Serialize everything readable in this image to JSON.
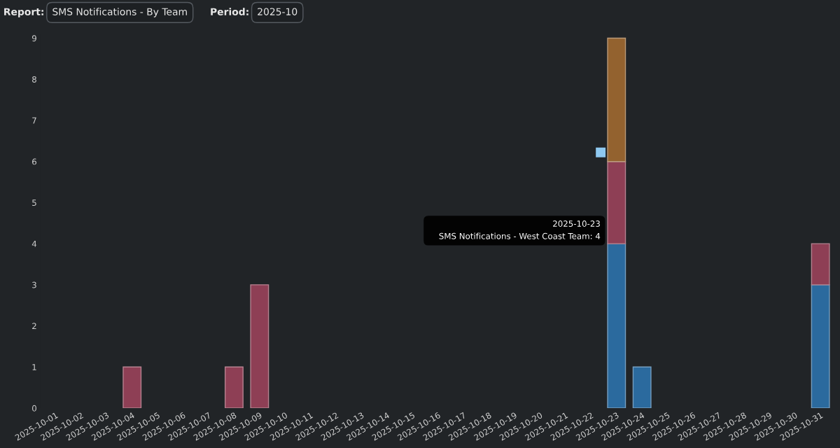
{
  "chart_data": {
    "type": "bar",
    "stacked": true,
    "categories": [
      "2025-10-01",
      "2025-10-02",
      "2025-10-03",
      "2025-10-04",
      "2025-10-05",
      "2025-10-06",
      "2025-10-07",
      "2025-10-08",
      "2025-10-09",
      "2025-10-10",
      "2025-10-11",
      "2025-10-12",
      "2025-10-13",
      "2025-10-14",
      "2025-10-15",
      "2025-10-16",
      "2025-10-17",
      "2025-10-18",
      "2025-10-19",
      "2025-10-20",
      "2025-10-21",
      "2025-10-22",
      "2025-10-23",
      "2025-10-24",
      "2025-10-25",
      "2025-10-26",
      "2025-10-27",
      "2025-10-28",
      "2025-10-29",
      "2025-10-30",
      "2025-10-31"
    ],
    "series": [
      {
        "color": "#2b6a9e",
        "values": [
          null,
          null,
          null,
          null,
          null,
          null,
          null,
          null,
          null,
          null,
          null,
          null,
          null,
          null,
          null,
          null,
          null,
          null,
          null,
          null,
          null,
          null,
          4,
          1,
          null,
          null,
          null,
          null,
          null,
          null,
          3
        ]
      },
      {
        "color": "#8e3f55",
        "values": [
          null,
          null,
          null,
          1,
          null,
          null,
          null,
          1,
          3,
          null,
          null,
          null,
          null,
          null,
          null,
          null,
          null,
          null,
          null,
          null,
          null,
          null,
          2,
          null,
          null,
          null,
          null,
          null,
          null,
          null,
          1
        ]
      },
      {
        "color": "#93622f",
        "values": [
          null,
          null,
          null,
          null,
          null,
          null,
          null,
          null,
          null,
          null,
          null,
          null,
          null,
          null,
          null,
          null,
          null,
          null,
          null,
          null,
          null,
          null,
          3,
          null,
          null,
          null,
          null,
          null,
          null,
          null,
          null
        ]
      }
    ],
    "ylim": [
      0,
      9.1
    ],
    "yticks": [
      0,
      1,
      2,
      3,
      4,
      5,
      6,
      7,
      8,
      9
    ],
    "grid": false,
    "legend": false,
    "annotations": [
      "Report:",
      "SMS Notifications - By Team",
      "Period:",
      "2025-10",
      {
        "text": "2025-10-23\nSMS Notifications - West Coast Team: 4",
        "x": "2025-10-23",
        "y": 4
      }
    ]
  }
}
